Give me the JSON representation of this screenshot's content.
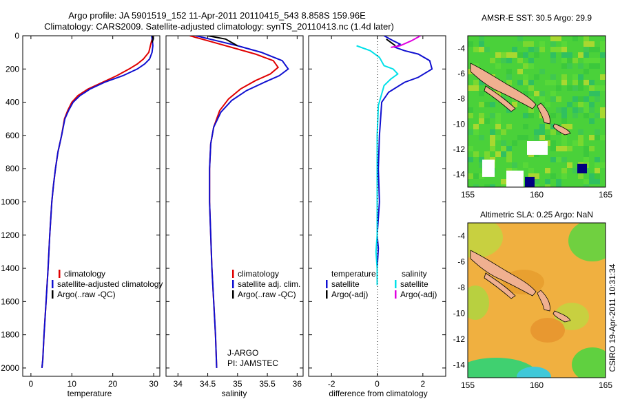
{
  "title": {
    "line1": "Argo profile: JA 5901519_152 11-Apr-2011 20110415_543 8.858S 159.96E",
    "line2": "Climatology: CARS2009. Satellite-adjusted climatology: synTS_20110413.nc (1.4d later)"
  },
  "colors": {
    "climatology": "#e00000",
    "satellite": "#1010d0",
    "argo": "#000000",
    "satellite_salinity": "#00e0e8",
    "argo_salinity_adj": "#e000e0"
  },
  "chart_data": [
    {
      "type": "line",
      "name": "temperature-profile",
      "xlabel": "temperature",
      "xlim": [
        -2,
        31.5
      ],
      "ylim": [
        0,
        2050
      ],
      "xticks": [
        "0",
        "10",
        "20",
        "30"
      ],
      "yticks": [
        "0",
        "200",
        "400",
        "600",
        "800",
        "1000",
        "1200",
        "1400",
        "1600",
        "1800",
        "2000"
      ],
      "legend": [
        "climatology",
        "satellite-adjusted climatology",
        "Argo(..raw -QC)"
      ],
      "series": [
        {
          "name": "climatology",
          "points": [
            [
              29.8,
              0
            ],
            [
              29.5,
              30
            ],
            [
              29.2,
              60
            ],
            [
              28.8,
              100
            ],
            [
              27.5,
              140
            ],
            [
              26,
              170
            ],
            [
              24,
              200
            ],
            [
              21,
              240
            ],
            [
              17.5,
              280
            ],
            [
              14,
              320
            ],
            [
              11.5,
              360
            ],
            [
              10,
              400
            ],
            [
              9,
              450
            ],
            [
              8.2,
              500
            ],
            [
              7.5,
              600
            ],
            [
              6.6,
              700
            ],
            [
              6,
              800
            ],
            [
              5.5,
              900
            ],
            [
              5.1,
              1000
            ],
            [
              4.6,
              1200
            ],
            [
              4.2,
              1400
            ],
            [
              3.7,
              1600
            ],
            [
              3.2,
              1800
            ],
            [
              2.9,
              1950
            ],
            [
              2.7,
              2000
            ]
          ]
        },
        {
          "name": "satellite",
          "points": [
            [
              29.5,
              0
            ],
            [
              29.7,
              30
            ],
            [
              29.8,
              60
            ],
            [
              29.6,
              100
            ],
            [
              29,
              140
            ],
            [
              27.8,
              170
            ],
            [
              26,
              200
            ],
            [
              22.5,
              240
            ],
            [
              18,
              280
            ],
            [
              14.5,
              320
            ],
            [
              12,
              360
            ],
            [
              10.3,
              400
            ],
            [
              9.2,
              450
            ],
            [
              8.3,
              500
            ],
            [
              7.5,
              600
            ],
            [
              6.6,
              700
            ],
            [
              6,
              800
            ],
            [
              5.5,
              900
            ],
            [
              5.1,
              1000
            ],
            [
              4.6,
              1200
            ],
            [
              4.2,
              1400
            ],
            [
              3.7,
              1600
            ],
            [
              3.2,
              1800
            ],
            [
              2.9,
              1950
            ],
            [
              2.7,
              2000
            ]
          ]
        },
        {
          "name": "argo",
          "points": [
            [
              29.7,
              0
            ],
            [
              29.9,
              20
            ],
            [
              29.6,
              40
            ]
          ]
        }
      ]
    },
    {
      "type": "line",
      "name": "salinity-profile",
      "xlabel": "salinity",
      "xlim": [
        33.8,
        36.1
      ],
      "ylim": [
        0,
        2050
      ],
      "xticks": [
        "34",
        "34.5",
        "35",
        "35.5",
        "36"
      ],
      "legend": [
        "climatology",
        "satellite adj. clim.",
        "Argo(..raw -QC)"
      ],
      "annotation": [
        "J-ARGO",
        "PI: JAMSTEC"
      ],
      "series": [
        {
          "name": "climatology",
          "points": [
            [
              34.2,
              0
            ],
            [
              34.5,
              30
            ],
            [
              34.9,
              70
            ],
            [
              35.3,
              110
            ],
            [
              35.6,
              150
            ],
            [
              35.68,
              190
            ],
            [
              35.55,
              230
            ],
            [
              35.3,
              270
            ],
            [
              35.05,
              320
            ],
            [
              34.85,
              380
            ],
            [
              34.7,
              450
            ],
            [
              34.6,
              550
            ],
            [
              34.55,
              650
            ],
            [
              34.53,
              800
            ],
            [
              34.53,
              1000
            ],
            [
              34.55,
              1200
            ],
            [
              34.57,
              1400
            ],
            [
              34.6,
              1600
            ],
            [
              34.63,
              1800
            ],
            [
              34.65,
              2000
            ]
          ]
        },
        {
          "name": "satellite",
          "points": [
            [
              34.3,
              0
            ],
            [
              34.65,
              30
            ],
            [
              35.0,
              60
            ],
            [
              35.4,
              100
            ],
            [
              35.75,
              150
            ],
            [
              35.85,
              200
            ],
            [
              35.7,
              240
            ],
            [
              35.45,
              280
            ],
            [
              35.15,
              330
            ],
            [
              34.9,
              390
            ],
            [
              34.72,
              460
            ],
            [
              34.6,
              550
            ],
            [
              34.55,
              650
            ],
            [
              34.53,
              800
            ],
            [
              34.53,
              1000
            ],
            [
              34.55,
              1200
            ],
            [
              34.57,
              1400
            ],
            [
              34.6,
              1600
            ],
            [
              34.63,
              1800
            ],
            [
              34.65,
              2000
            ]
          ]
        },
        {
          "name": "argo",
          "points": [
            [
              34.5,
              0
            ],
            [
              34.8,
              20
            ],
            [
              34.9,
              40
            ],
            [
              35.0,
              60
            ]
          ]
        }
      ]
    },
    {
      "type": "line",
      "name": "difference-profile",
      "xlabel": "difference from climatology",
      "xlim": [
        -3,
        3
      ],
      "ylim": [
        0,
        2050
      ],
      "xticks": [
        "-2",
        "0",
        "2"
      ],
      "legend_temperature": {
        "heading": "temperature",
        "items": [
          "satellite",
          "Argo(-adj)"
        ]
      },
      "legend_salinity": {
        "heading": "salinity",
        "items": [
          "satellite",
          "Argo(-adj)"
        ]
      },
      "series": [
        {
          "name": "temperature satellite",
          "points": [
            [
              0.3,
              0
            ],
            [
              0.7,
              30
            ],
            [
              1.0,
              50
            ],
            [
              0.8,
              70
            ],
            [
              1.2,
              90
            ],
            [
              1.8,
              110
            ],
            [
              2.3,
              150
            ],
            [
              2.4,
              200
            ],
            [
              1.8,
              250
            ],
            [
              1.2,
              280
            ],
            [
              0.5,
              340
            ],
            [
              0.2,
              400
            ],
            [
              0.1,
              600
            ],
            [
              0.05,
              800
            ],
            [
              0.1,
              1000
            ],
            [
              0.0,
              1200
            ],
            [
              0.05,
              1280
            ],
            [
              0.0,
              1400
            ],
            [
              0.0,
              1500
            ]
          ]
        },
        {
          "name": "temperature argo",
          "points": [
            [
              0.4,
              20
            ],
            [
              0.6,
              40
            ],
            [
              0.8,
              60
            ]
          ]
        },
        {
          "name": "salinity satellite",
          "points": [
            [
              -0.9,
              60
            ],
            [
              -0.3,
              90
            ],
            [
              0.1,
              130
            ],
            [
              0.3,
              180
            ],
            [
              0.7,
              200
            ],
            [
              0.9,
              230
            ],
            [
              0.6,
              260
            ],
            [
              0.3,
              300
            ],
            [
              0.2,
              350
            ],
            [
              0.05,
              420
            ],
            [
              0,
              600
            ],
            [
              0,
              800
            ],
            [
              0,
              1000
            ],
            [
              0,
              1200
            ],
            [
              -0.05,
              1300
            ],
            [
              0,
              1400
            ],
            [
              0,
              1500
            ]
          ]
        },
        {
          "name": "argo salinity adj",
          "points": [
            [
              1.9,
              0
            ],
            [
              1.5,
              30
            ],
            [
              1.0,
              60
            ],
            [
              0.6,
              70
            ]
          ]
        }
      ]
    },
    {
      "type": "heatmap",
      "name": "amsr-e-sst-map",
      "title": "AMSR-E SST: 30.5  Argo: 29.9",
      "xticks": [
        "155",
        "160",
        "165"
      ],
      "yticks": [
        "-4",
        "-6",
        "-8",
        "-10",
        "-12",
        "-14"
      ],
      "xlim": [
        155,
        165
      ],
      "ylim": [
        -15,
        -3
      ]
    },
    {
      "type": "heatmap",
      "name": "altimetric-sla-map",
      "title": "Altimetric SLA: 0.25  Argo: NaN",
      "xticks": [
        "155",
        "160",
        "165"
      ],
      "yticks": [
        "-4",
        "-6",
        "-8",
        "-10",
        "-12",
        "-14"
      ],
      "xlim": [
        155,
        165
      ],
      "ylim": [
        -15,
        -3
      ],
      "side_label": "CSIRO 19-Apr-2011 10:31:34"
    }
  ]
}
